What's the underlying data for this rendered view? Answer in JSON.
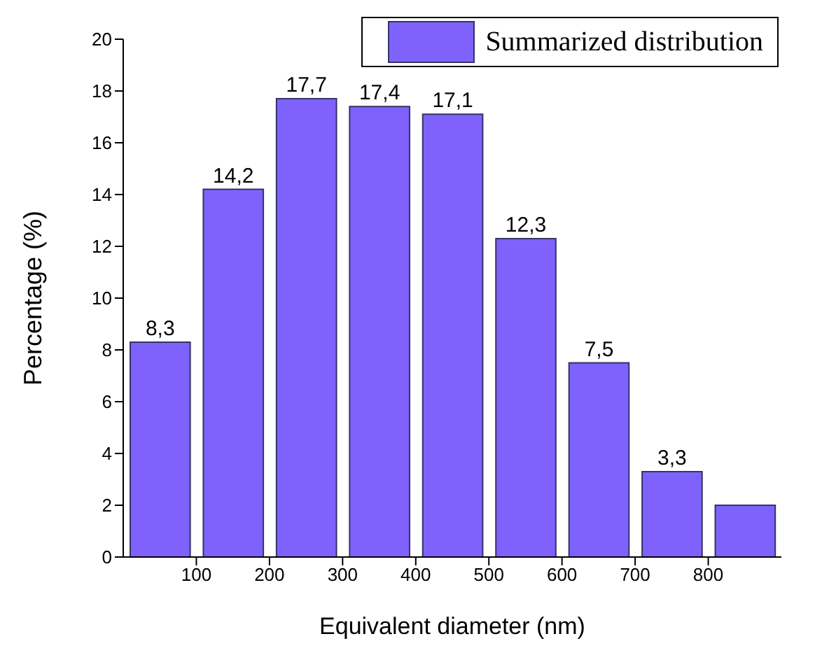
{
  "chart_data": {
    "type": "histogram",
    "xlabel": "Equivalent diameter (nm)",
    "ylabel": "Percentage (%)",
    "bins": [
      0,
      100,
      200,
      300,
      400,
      500,
      600,
      700,
      800,
      900
    ],
    "series": [
      {
        "name": "Summarized distribution",
        "color": "#7f62fc",
        "values": [
          8.3,
          14.2,
          17.7,
          17.4,
          17.1,
          12.3,
          7.5,
          3.3,
          2.0
        ]
      }
    ],
    "value_labels": [
      "8,3",
      "14,2",
      "17,7",
      "17,4",
      "17,1",
      "12,3",
      "7,5",
      "3,3",
      null
    ],
    "xlim": [
      0,
      900
    ],
    "xticks": [
      100,
      200,
      300,
      400,
      500,
      600,
      700,
      800
    ],
    "ylim": [
      0,
      20
    ],
    "yticks": [
      0,
      2,
      4,
      6,
      8,
      10,
      12,
      14,
      16,
      18,
      20
    ],
    "grid": false,
    "legend": "top right"
  }
}
